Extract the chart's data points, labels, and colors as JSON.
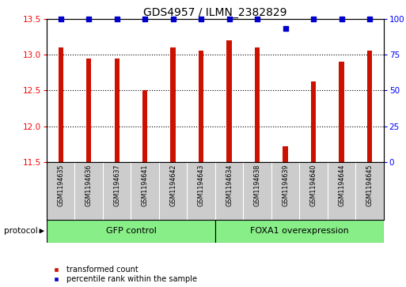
{
  "title": "GDS4957 / ILMN_2382829",
  "samples": [
    "GSM1194635",
    "GSM1194636",
    "GSM1194637",
    "GSM1194641",
    "GSM1194642",
    "GSM1194643",
    "GSM1194634",
    "GSM1194638",
    "GSM1194639",
    "GSM1194640",
    "GSM1194644",
    "GSM1194645"
  ],
  "bar_values": [
    13.1,
    12.95,
    12.95,
    12.5,
    13.1,
    13.05,
    13.2,
    13.1,
    11.72,
    12.62,
    12.9,
    13.05
  ],
  "percentile_values": [
    100,
    100,
    100,
    100,
    100,
    100,
    100,
    100,
    93,
    100,
    100,
    100
  ],
  "ylim": [
    11.5,
    13.5
  ],
  "y2lim": [
    0,
    100
  ],
  "yticks": [
    11.5,
    12.0,
    12.5,
    13.0,
    13.5
  ],
  "y2ticks": [
    0,
    25,
    50,
    75,
    100
  ],
  "bar_color": "#cc1100",
  "dot_color": "#0000cc",
  "background_color": "#ffffff",
  "plot_bg_color": "#ffffff",
  "group1_label": "GFP control",
  "group2_label": "FOXA1 overexpression",
  "group1_count": 6,
  "group2_count": 6,
  "legend_bar_label": "transformed count",
  "legend_dot_label": "percentile rank within the sample",
  "protocol_label": "protocol",
  "group_bg_color": "#88ee88",
  "sample_bg_color": "#cccccc",
  "title_fontsize": 10,
  "tick_fontsize": 7.5,
  "bar_width": 0.18,
  "pct_dot_size": 15,
  "grid_linestyle": ":",
  "grid_linewidth": 0.8,
  "grid_yticks": [
    12.0,
    12.5,
    13.0
  ]
}
